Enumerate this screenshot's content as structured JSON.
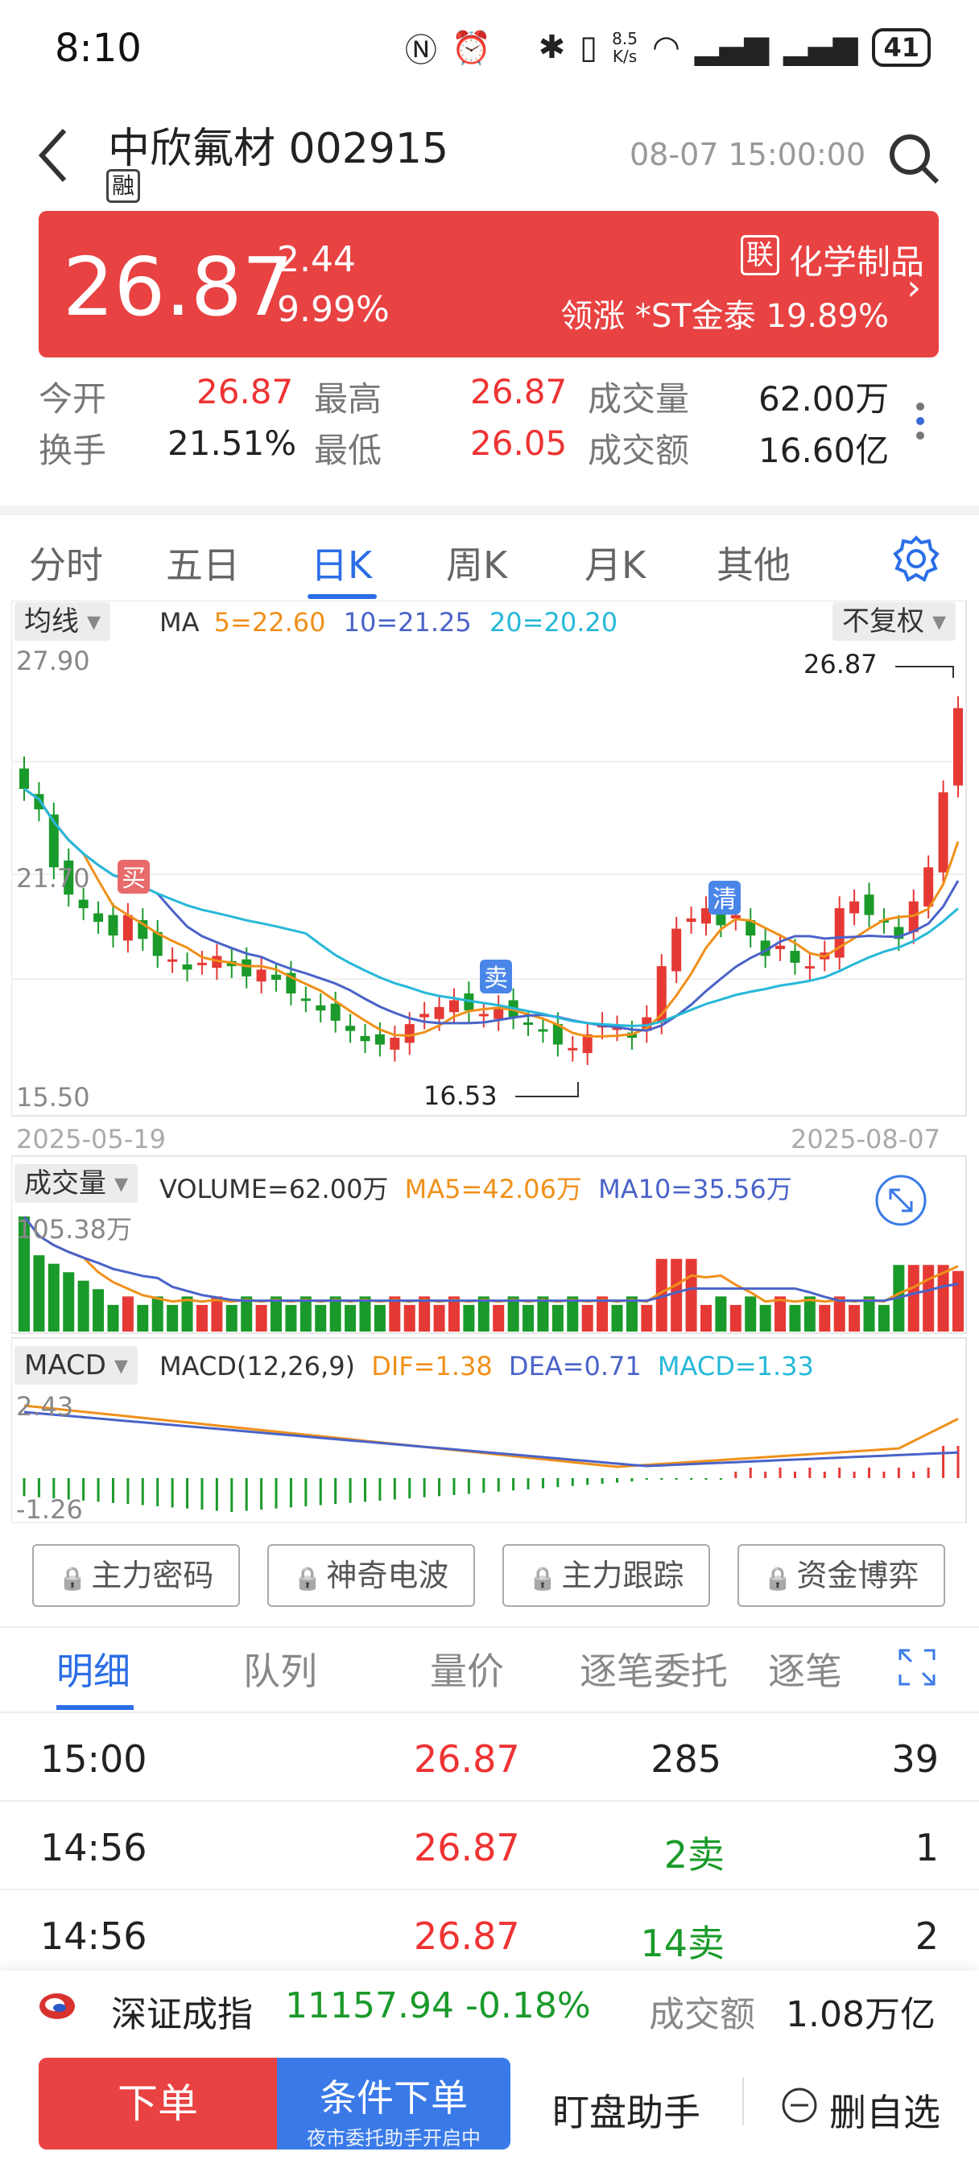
{
  "status_bar": {
    "time": "8:10",
    "speed": "8.5\nK/s",
    "battery": "41"
  },
  "header": {
    "stock_name": "中欣氟材 002915",
    "margin_tag": "融",
    "datetime": "08-07 15:00:00"
  },
  "price": {
    "last": "26.87",
    "change": "2.44",
    "change_pct": "9.99%",
    "industry_tag": "联",
    "industry": "化学制品",
    "leader": "领涨 *ST金泰 19.89%"
  },
  "stats": {
    "open_label": "今开",
    "open": "26.87",
    "high_label": "最高",
    "high": "26.87",
    "volume_label": "成交量",
    "volume": "62.00万",
    "turnover_label": "换手",
    "turnover": "21.51%",
    "low_label": "最低",
    "low": "26.05",
    "amount_label": "成交额",
    "amount": "16.60亿"
  },
  "tabs": [
    "分时",
    "五日",
    "日K",
    "周K",
    "月K",
    "其他"
  ],
  "active_tab": "日K",
  "kline": {
    "ma_selector": "均线",
    "ma_label": "MA",
    "ma5": "5=22.60",
    "ma10": "10=21.25",
    "ma20": "20=20.20",
    "adjust": "不复权",
    "y_top": "27.90",
    "y_mid": "21.70",
    "y_bottom": "15.50",
    "high_marker": "26.87",
    "low_marker": "16.53",
    "date_start": "2025-05-19",
    "date_end": "2025-08-07",
    "signal_buy": "买",
    "signal_sell": "卖",
    "signal_clear": "清",
    "colors": {
      "up": "#e53935",
      "down": "#1a9a2a",
      "ma5": "#f0901a",
      "ma10": "#4a63c8",
      "ma20": "#26b8d8"
    }
  },
  "volume": {
    "selector": "成交量",
    "label": "VOLUME=62.00万",
    "ma5": "MA5=42.06万",
    "ma10": "MA10=35.56万",
    "y_top": "105.38万"
  },
  "macd": {
    "selector": "MACD",
    "label": "MACD(12,26,9)",
    "dif": "DIF=1.38",
    "dea": "DEA=0.71",
    "macd": "MACD=1.33",
    "y_top": "2.43",
    "y_bottom": "-1.26"
  },
  "chart_data": {
    "type": "candlestick",
    "x_range": [
      "2025-05-19",
      "2025-08-07"
    ],
    "ylim": [
      15.5,
      27.9
    ],
    "highest": 26.87,
    "lowest": 16.53,
    "ma": {
      "MA5": 22.6,
      "MA10": 21.25,
      "MA20": 20.2
    },
    "last_volume": "62.00万",
    "macd": {
      "DIF": 1.38,
      "DEA": 0.71,
      "MACD": 1.33
    }
  },
  "lock_buttons": [
    "主力密码",
    "神奇电波",
    "主力跟踪",
    "资金博弈"
  ],
  "detail_tabs": [
    "明细",
    "队列",
    "量价",
    "逐笔委托",
    "逐笔"
  ],
  "ticks": [
    {
      "time": "15:00",
      "price": "26.87",
      "vol": "285",
      "num": "39"
    },
    {
      "time": "14:56",
      "price": "26.87",
      "vol": "2卖",
      "num": "1"
    },
    {
      "time": "14:56",
      "price": "26.87",
      "vol": "14卖",
      "num": "2"
    }
  ],
  "index_bar": {
    "name": "深证成指",
    "value": "11157.94",
    "change": "-0.18%",
    "amount_label": "成交额",
    "amount": "1.08万亿"
  },
  "bottom": {
    "order": "下单",
    "cond_order": "条件下单",
    "cond_sub": "夜市委托助手开启中",
    "assistant": "盯盘助手",
    "remove_fav": "删自选"
  }
}
